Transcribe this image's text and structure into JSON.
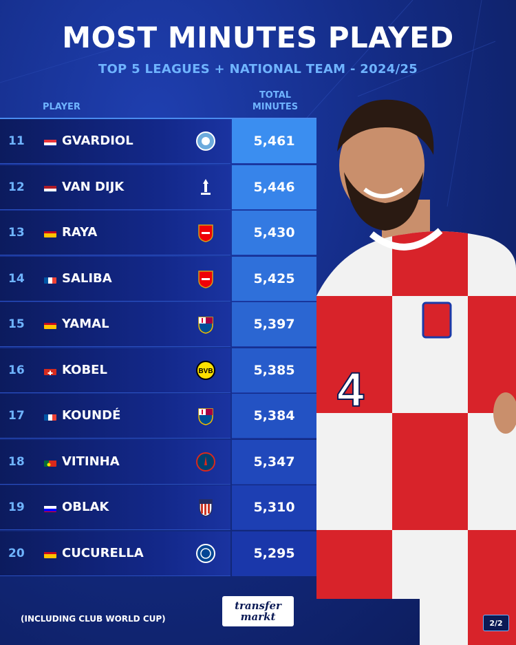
{
  "header": {
    "title": "MOST MINUTES PLAYED",
    "subtitle": "TOP 5 LEAGUES + NATIONAL TEAM - 2024/25"
  },
  "columns": {
    "player": "PLAYER",
    "minutes_line1": "TOTAL",
    "minutes_line2": "MINUTES"
  },
  "chart_data": {
    "type": "table",
    "title": "MOST MINUTES PLAYED",
    "subtitle": "TOP 5 LEAGUES + NATIONAL TEAM - 2024/25",
    "columns": [
      "PLAYER",
      "TOTAL MINUTES"
    ],
    "rows": [
      {
        "rank": "11",
        "player": "GVARDIOL",
        "flag": "croatia",
        "club_crest": "manchester-city-crest",
        "minutes": "5,461",
        "value": 5461
      },
      {
        "rank": "12",
        "player": "VAN DIJK",
        "flag": "netherlands",
        "club_crest": "liverpool-crest",
        "minutes": "5,446",
        "value": 5446
      },
      {
        "rank": "13",
        "player": "RAYA",
        "flag": "spain",
        "club_crest": "arsenal-crest",
        "minutes": "5,430",
        "value": 5430
      },
      {
        "rank": "14",
        "player": "SALIBA",
        "flag": "france",
        "club_crest": "arsenal-crest",
        "minutes": "5,425",
        "value": 5425
      },
      {
        "rank": "15",
        "player": "YAMAL",
        "flag": "spain",
        "club_crest": "barcelona-crest",
        "minutes": "5,397",
        "value": 5397
      },
      {
        "rank": "16",
        "player": "KOBEL",
        "flag": "switzerland",
        "club_crest": "dortmund-crest",
        "minutes": "5,385",
        "value": 5385
      },
      {
        "rank": "17",
        "player": "KOUNDÉ",
        "flag": "france",
        "club_crest": "barcelona-crest",
        "minutes": "5,384",
        "value": 5384
      },
      {
        "rank": "18",
        "player": "VITINHA",
        "flag": "portugal",
        "club_crest": "psg-crest",
        "minutes": "5,347",
        "value": 5347
      },
      {
        "rank": "19",
        "player": "OBLAK",
        "flag": "slovenia",
        "club_crest": "atletico-madrid-crest",
        "minutes": "5,310",
        "value": 5310
      },
      {
        "rank": "20",
        "player": "CUCURELLA",
        "flag": "spain",
        "club_crest": "chelsea-crest",
        "minutes": "5,295",
        "value": 5295
      }
    ],
    "value_box_colors": [
      "#3b8ef0",
      "#3784ea",
      "#337ae2",
      "#2f70da",
      "#2b66d2",
      "#275ccb",
      "#2352c3",
      "#2048bb",
      "#1d3fb3",
      "#1a37aa"
    ]
  },
  "footer": {
    "note": "(INCLUDING CLUB WORLD CUP)",
    "logo_line1": "transfer",
    "logo_line2": "markt",
    "page": "2/2"
  },
  "colors": {
    "accent": "#6fb4ff",
    "background": "#142c86",
    "croatia_red": "#d8232a"
  }
}
